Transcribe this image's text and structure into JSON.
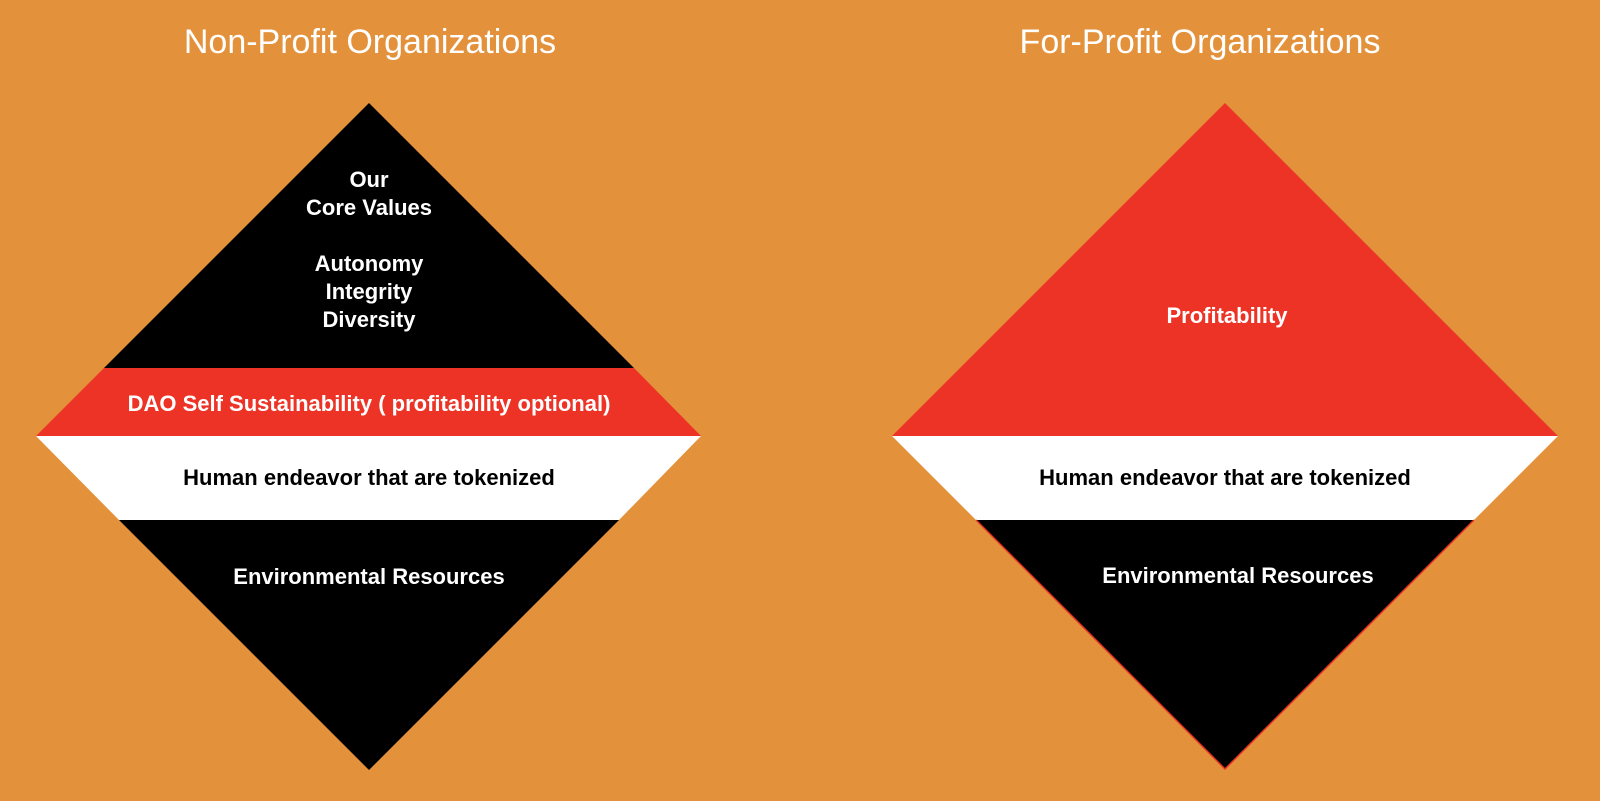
{
  "colors": {
    "background": "#E3923B",
    "black": "#000000",
    "red": "#EC3325",
    "white": "#FFFFFF"
  },
  "left": {
    "title": "Non-Profit Organizations",
    "top_title_line1": "Our",
    "top_title_line2": "Core Values",
    "values": [
      "Autonomy",
      "Integrity",
      "Diversity"
    ],
    "sustainability": "DAO Self Sustainability ( profitability optional)",
    "human": "Human endeavor that are tokenized",
    "environment": "Environmental Resources"
  },
  "right": {
    "title": "For-Profit Organizations",
    "profitability": "Profitability",
    "human": "Human endeavor that are tokenized",
    "environment": "Environmental Resources"
  }
}
